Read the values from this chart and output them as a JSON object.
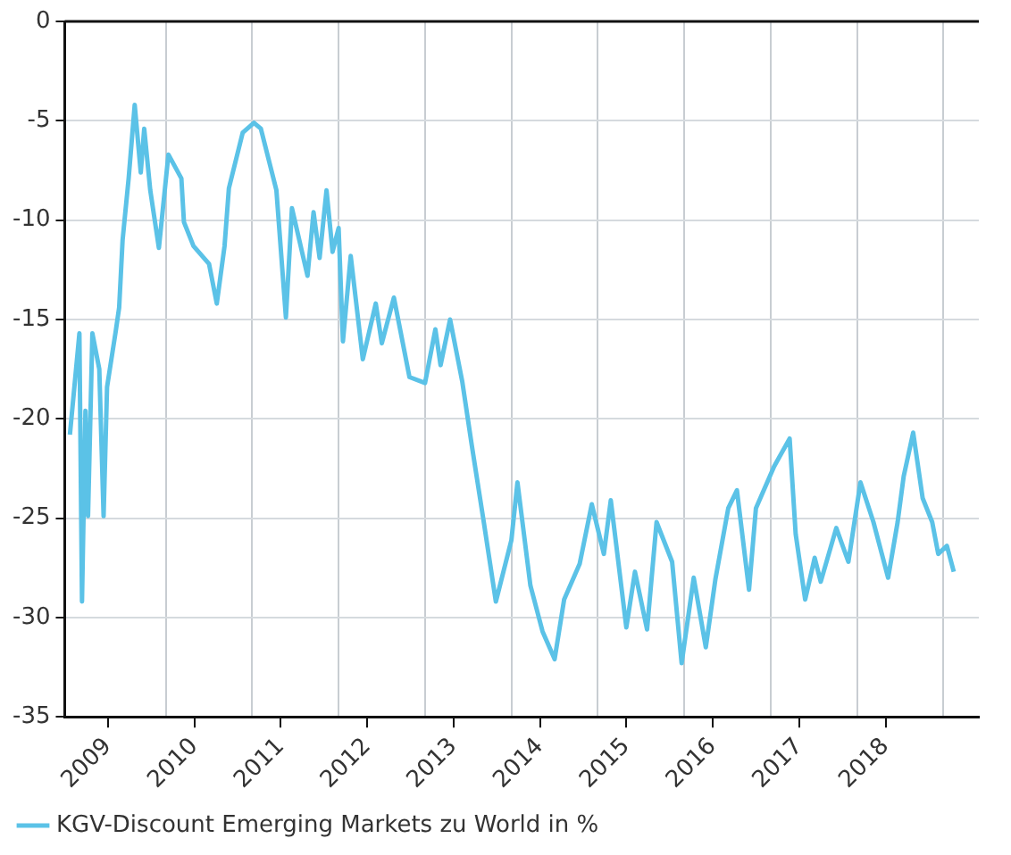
{
  "chart_data": {
    "type": "line",
    "xlim": [
      2008.5,
      2019.08
    ],
    "ylim": [
      -35,
      0
    ],
    "xticks": [
      2009,
      {
        "value": 2009.67,
        "label": null
      },
      2010,
      {
        "value": 2010.67,
        "label": null
      },
      2011,
      {
        "value": 2011.67,
        "label": null
      },
      2012,
      {
        "value": 2012.67,
        "label": null
      },
      2013,
      {
        "value": 2013.67,
        "label": null
      },
      2014,
      {
        "value": 2014.67,
        "label": null
      },
      2015,
      {
        "value": 2015.67,
        "label": null
      },
      2016,
      {
        "value": 2016.67,
        "label": null
      },
      2017,
      {
        "value": 2017.67,
        "label": null
      },
      2018,
      {
        "value": 2018.67,
        "label": null
      }
    ],
    "yticks": [
      0,
      -5,
      -10,
      -15,
      -20,
      -25,
      -30,
      -35
    ],
    "grid": true,
    "legend": "bottom left",
    "marker": "none",
    "line_style": "solid",
    "series": [
      {
        "name": "KGV-Discount Emerging Markets zu World in %",
        "color": "#5bc2e7",
        "x": [
          2008.56,
          2008.67,
          2008.7,
          2008.74,
          2008.77,
          2008.82,
          2008.9,
          2008.95,
          2008.99,
          2009.09,
          2009.13,
          2009.17,
          2009.24,
          2009.31,
          2009.38,
          2009.42,
          2009.49,
          2009.59,
          2009.7,
          2009.85,
          2009.88,
          2009.99,
          2010.17,
          2010.26,
          2010.35,
          2010.4,
          2010.56,
          2010.69,
          2010.77,
          2010.95,
          2011.06,
          2011.13,
          2011.31,
          2011.38,
          2011.45,
          2011.53,
          2011.6,
          2011.67,
          2011.72,
          2011.81,
          2011.95,
          2012.1,
          2012.17,
          2012.31,
          2012.49,
          2012.67,
          2012.79,
          2012.85,
          2012.96,
          2013.1,
          2013.21,
          2013.35,
          2013.49,
          2013.67,
          2013.74,
          2013.89,
          2014.03,
          2014.17,
          2014.28,
          2014.46,
          2014.6,
          2014.74,
          2014.82,
          2015.0,
          2015.1,
          2015.24,
          2015.35,
          2015.53,
          2015.64,
          2015.78,
          2015.92,
          2016.03,
          2016.18,
          2016.28,
          2016.42,
          2016.5,
          2016.71,
          2016.89,
          2016.96,
          2017.07,
          2017.18,
          2017.25,
          2017.43,
          2017.57,
          2017.71,
          2017.86,
          2018.03,
          2018.14,
          2018.21,
          2018.32,
          2018.43,
          2018.54,
          2018.61,
          2018.71,
          2018.79
        ],
        "values": [
          -20.8,
          -15.7,
          -29.2,
          -19.6,
          -24.9,
          -15.7,
          -17.5,
          -24.9,
          -18.4,
          -15.6,
          -14.4,
          -11.0,
          -7.9,
          -4.2,
          -7.6,
          -5.4,
          -8.5,
          -11.4,
          -6.7,
          -7.9,
          -10.1,
          -11.3,
          -12.2,
          -14.2,
          -11.3,
          -8.4,
          -5.6,
          -5.1,
          -5.4,
          -8.5,
          -14.9,
          -9.4,
          -12.8,
          -9.6,
          -11.9,
          -8.5,
          -11.6,
          -10.4,
          -16.1,
          -11.8,
          -17.0,
          -14.2,
          -16.2,
          -13.9,
          -17.9,
          -18.2,
          -15.5,
          -17.3,
          -15.0,
          -18.1,
          -21.3,
          -25.2,
          -29.2,
          -26.1,
          -23.2,
          -28.4,
          -30.7,
          -32.1,
          -29.1,
          -27.3,
          -24.3,
          -26.8,
          -24.1,
          -30.5,
          -27.7,
          -30.6,
          -25.2,
          -27.2,
          -32.3,
          -28.0,
          -31.5,
          -28.1,
          -24.5,
          -23.6,
          -28.6,
          -24.5,
          -22.4,
          -21.0,
          -25.8,
          -29.1,
          -27.0,
          -28.2,
          -25.5,
          -27.2,
          -23.2,
          -25.2,
          -28.0,
          -25.2,
          -22.9,
          -20.7,
          -24.0,
          -25.2,
          -26.8,
          -26.4,
          -27.7
        ]
      }
    ]
  }
}
